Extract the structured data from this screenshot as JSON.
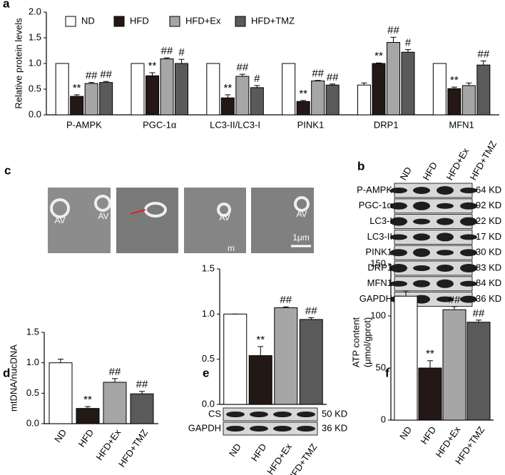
{
  "chart_data": [
    {
      "type": "bar",
      "label": "a",
      "ylabel": "Relative protein levels",
      "categories": [
        "P-AMPK",
        "PGC-1α",
        "LC3-II/LC3-I",
        "PINK1",
        "DRP1",
        "MFN1"
      ],
      "series": [
        {
          "name": "ND",
          "color": "#ffffff",
          "values": [
            1,
            1,
            1,
            1,
            0.58,
            1
          ],
          "errors": [
            0,
            0,
            0,
            0,
            0.04,
            0
          ],
          "sig": [
            null,
            null,
            null,
            null,
            null,
            null
          ]
        },
        {
          "name": "HFD",
          "color": "#231815",
          "values": [
            0.36,
            0.76,
            0.33,
            0.26,
            1,
            0.51
          ],
          "errors": [
            0.03,
            0.06,
            0.06,
            0.02,
            0.01,
            0.03
          ],
          "sig": [
            "**",
            "**",
            "**",
            "**",
            "**",
            "**"
          ]
        },
        {
          "name": "HFD+Ex",
          "color": "#a6a6a6",
          "values": [
            0.61,
            1.09,
            0.75,
            0.66,
            1.41,
            0.57
          ],
          "errors": [
            0.02,
            0.02,
            0.04,
            0.01,
            0.1,
            0.05
          ],
          "sig": [
            "##",
            "##",
            "##",
            "##",
            "##",
            null
          ]
        },
        {
          "name": "HFD+TMZ",
          "color": "#5a5a5a",
          "values": [
            0.63,
            1,
            0.53,
            0.58,
            1.22,
            0.97
          ],
          "errors": [
            0.02,
            0.08,
            0.04,
            0.02,
            0.05,
            0.08
          ],
          "sig": [
            "##",
            "#",
            "#",
            "##",
            "#",
            "##"
          ]
        }
      ],
      "ylim": [
        0,
        2
      ],
      "yticks": [
        {
          "value": 0,
          "label": "0.0"
        },
        0.5,
        {
          "value": 1,
          "label": "1.0"
        },
        1.5,
        {
          "value": 2,
          "label": "2.0"
        }
      ],
      "legend": "top"
    },
    {
      "type": "bar",
      "label": "d",
      "ylabel": "mtDNA/nucDNA",
      "categories": [
        "ND",
        "HFD",
        "HFD+Ex",
        "HFD+TMZ"
      ],
      "values": [
        1,
        0.25,
        0.68,
        0.49
      ],
      "errors": [
        0.06,
        0.03,
        0.06,
        0.04
      ],
      "sig": [
        null,
        "**",
        "##",
        "##"
      ],
      "colors": [
        "#ffffff",
        "#231815",
        "#a6a6a6",
        "#5a5a5a"
      ],
      "ylim": [
        0,
        1.5
      ],
      "yticks": [
        {
          "value": 0,
          "label": "0.0"
        },
        0.5,
        {
          "value": 1,
          "label": "1.0"
        },
        1.5
      ]
    },
    {
      "type": "bar",
      "label": "e",
      "categories": [
        "ND",
        "HFD",
        "HFD+Ex",
        "HFD+TMZ"
      ],
      "values": [
        1,
        0.54,
        1.07,
        0.94
      ],
      "errors": [
        0,
        0.1,
        0.01,
        0.02
      ],
      "sig": [
        null,
        "**",
        "##",
        "##"
      ],
      "colors": [
        "#ffffff",
        "#231815",
        "#a6a6a6",
        "#5a5a5a"
      ],
      "ylim": [
        0,
        1.5
      ],
      "yticks": [
        {
          "value": 0,
          "label": "0.0"
        },
        0.5,
        {
          "value": 1,
          "label": "1.0"
        },
        1.5
      ],
      "blot": [
        {
          "name": "CS",
          "size": "50 KD"
        },
        {
          "name": "GAPDH",
          "size": "36 KD"
        }
      ]
    },
    {
      "type": "bar",
      "label": "f",
      "ylabel": [
        "ATP content",
        "(μmol/gprot)"
      ],
      "categories": [
        "ND",
        "HFD",
        "HFD+Ex",
        "HFD+TMZ"
      ],
      "values": [
        119,
        50,
        106,
        94
      ],
      "errors": [
        5,
        7,
        3,
        2
      ],
      "sig": [
        null,
        "**",
        "##",
        "##"
      ],
      "colors": [
        "#ffffff",
        "#231815",
        "#a6a6a6",
        "#5a5a5a"
      ],
      "ylim": [
        0,
        150
      ],
      "yticks": [
        0,
        50,
        100,
        150
      ]
    }
  ],
  "blot_b": {
    "label": "b",
    "lanes": [
      "ND",
      "HFD",
      "HFD+Ex",
      "HFD+TMZ"
    ],
    "rows": [
      {
        "name": "P-AMPK",
        "size": "64 KD"
      },
      {
        "name": "PGC-1α",
        "size": "92 KD"
      },
      {
        "name": "LC3-I",
        "size": "22 KD"
      },
      {
        "name": "LC3-II",
        "size": "17 KD"
      },
      {
        "name": "PINK1",
        "size": "30 KD"
      },
      {
        "name": "DRP1",
        "size": "83 KD"
      },
      {
        "name": "MFN1",
        "size": "84 KD"
      },
      {
        "name": "GAPDH",
        "size": "36 KD"
      }
    ]
  },
  "micrographs_c": {
    "label": "c",
    "annotations": [
      "AV",
      "AV",
      "AV",
      "AV",
      "m",
      "1μm"
    ]
  }
}
